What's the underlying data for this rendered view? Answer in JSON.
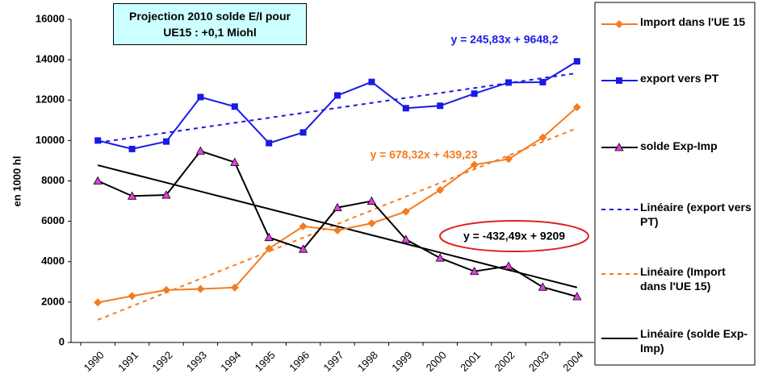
{
  "chart_data": {
    "type": "line",
    "y_label": "en 1000 hl",
    "annotations": [
      "Projection 2010 solde E/I pour UE15 : +0,1 Miohl",
      "y = 245,83x + 9648,2",
      "y = 678,32x + 439,23",
      "y = -432,49x + 9209"
    ],
    "categories": [
      "1990",
      "1991",
      "1992",
      "1993",
      "1994",
      "1995",
      "1996",
      "1997",
      "1998",
      "1999",
      "2000",
      "2001",
      "2002",
      "2003",
      "2004"
    ],
    "ylim": [
      0,
      16000
    ],
    "yticks": [
      0,
      2000,
      4000,
      6000,
      8000,
      10000,
      12000,
      14000,
      16000
    ],
    "series": [
      {
        "name": "Import dans l'UE 15",
        "color": "#f47b20",
        "marker": "diamond",
        "dash": false,
        "values": [
          1980,
          2300,
          2600,
          2650,
          2720,
          4650,
          5750,
          5550,
          5900,
          6480,
          7550,
          8800,
          9080,
          10150,
          11650
        ]
      },
      {
        "name": "export vers PT",
        "color": "#1a1ae6",
        "marker": "square",
        "dash": false,
        "values": [
          10000,
          9580,
          9950,
          12150,
          11680,
          9870,
          10400,
          12230,
          12900,
          11600,
          11720,
          12320,
          12870,
          12890,
          13920
        ]
      },
      {
        "name": "solde Exp-Imp",
        "color": "#000000",
        "marker": "triangle",
        "dash": false,
        "values": [
          8000,
          7250,
          7300,
          9480,
          8920,
          5200,
          4620,
          6680,
          7000,
          5100,
          4180,
          3520,
          3780,
          2740,
          2270
        ]
      },
      {
        "name": "Linéaire (export vers PT)",
        "color": "#1a1ae6",
        "marker": null,
        "dash": true,
        "values": [
          9894,
          10140,
          10386,
          10632,
          10877,
          11123,
          11369,
          11615,
          11861,
          12107,
          12353,
          12598,
          12844,
          13090,
          13336
        ]
      },
      {
        "name": "Linéaire (Import dans l'UE 15)",
        "color": "#f47b20",
        "marker": null,
        "dash": true,
        "values": [
          1118,
          1796,
          2474,
          3153,
          3831,
          4509,
          5188,
          5866,
          6544,
          7222,
          7901,
          8579,
          9257,
          9936,
          10614
        ]
      },
      {
        "name": "Linéaire (solde Exp-Imp)",
        "color": "#000000",
        "marker": null,
        "dash": false,
        "values": [
          8777,
          8344,
          7912,
          7479,
          7047,
          6614,
          6182,
          5749,
          5317,
          4884,
          4452,
          4019,
          3587,
          3154,
          2722
        ]
      }
    ]
  }
}
